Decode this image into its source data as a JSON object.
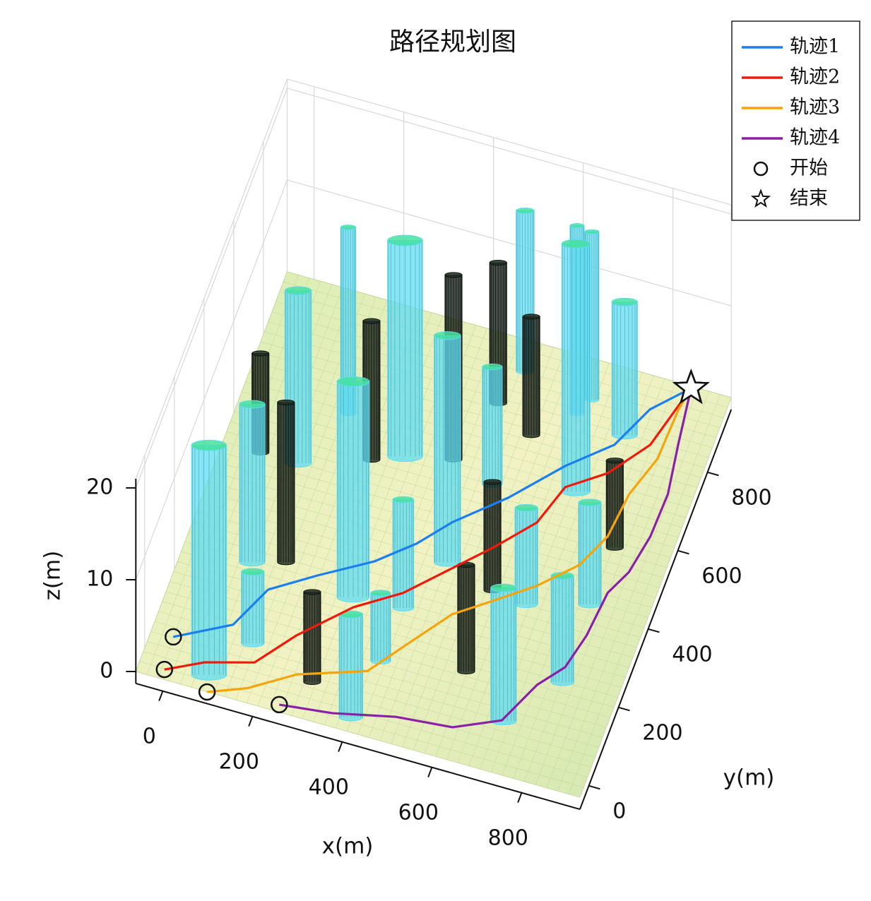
{
  "chart_data": {
    "type": "line3d",
    "title": "路径规划图",
    "xlabel": "x(m)",
    "ylabel": "y(m)",
    "zlabel": "z(m)",
    "xlim": [
      -60,
      930
    ],
    "ylim": [
      -60,
      960
    ],
    "zlim": [
      -1.3,
      21
    ],
    "xticks": [
      0,
      200,
      400,
      600,
      800
    ],
    "yticks": [
      0,
      200,
      400,
      600,
      800
    ],
    "zticks": [
      0,
      10,
      20
    ],
    "grid": true,
    "legend": "upper right",
    "series": [
      {
        "name": "轨迹1",
        "color": "#1a7ff0",
        "x": [
          3,
          114,
          158,
          247,
          350,
          422,
          477,
          572,
          662,
          745,
          789,
          856
        ],
        "y": [
          2,
          69,
          173,
          238,
          307,
          376,
          448,
          542,
          652,
          733,
          837,
          913
        ],
        "z": [
          2,
          2,
          2,
          2,
          2,
          2,
          2,
          2,
          2,
          2,
          2,
          2
        ]
      },
      {
        "name": "轨迹2",
        "color": "#f01a0a",
        "x": [
          10,
          86,
          186,
          250,
          343,
          432,
          512,
          581,
          648,
          678,
          753,
          817,
          856
        ],
        "y": [
          -79,
          -36,
          -4,
          86,
          188,
          253,
          342,
          419,
          503,
          603,
          663,
          756,
          913
        ],
        "z": [
          2,
          2,
          2,
          2,
          2,
          2,
          2,
          2,
          2,
          2,
          2,
          2,
          2
        ]
      },
      {
        "name": "轨迹3",
        "color": "#f5a40c",
        "x": [
          113,
          191,
          280,
          420,
          483,
          547,
          622,
          696,
          766,
          801,
          812,
          842,
          847,
          856
        ],
        "y": [
          -103,
          -68,
          -4,
          50,
          143,
          236,
          296,
          357,
          433,
          517,
          628,
          728,
          856,
          913
        ],
        "z": [
          2,
          2,
          2,
          2,
          2,
          2,
          2,
          2,
          2,
          2,
          2,
          2,
          2,
          2
        ]
      },
      {
        "name": "轨迹4",
        "color": "#8a1fa8",
        "x": [
          268,
          381,
          512,
          634,
          728,
          772,
          815,
          834,
          844,
          871,
          887,
          890,
          873,
          856
        ],
        "y": [
          -85,
          -70,
          -37,
          -24,
          24,
          129,
          188,
          275,
          387,
          449,
          545,
          654,
          775,
          913
        ],
        "z": [
          2,
          2,
          2,
          2,
          2,
          2,
          2,
          2,
          2,
          2,
          2,
          2,
          2,
          2
        ]
      }
    ],
    "start_marker": {
      "name": "开始"
    },
    "end_marker": {
      "name": "结束"
    },
    "obstacles": [
      {
        "color": "#5fdcf2",
        "top_color": "#45e0a0",
        "cylinders": [
          {
            "x": 90,
            "y": -20,
            "r": 37,
            "h": 25
          },
          {
            "x": 91,
            "y": 268,
            "r": 27,
            "h": 17.2
          },
          {
            "x": 108,
            "y": 526,
            "r": 28,
            "h": 18.8
          },
          {
            "x": 171,
            "y": 673,
            "r": 16,
            "h": 20.3
          },
          {
            "x": 321,
            "y": 253,
            "r": 34,
            "h": 23.5
          },
          {
            "x": 318,
            "y": 612,
            "r": 37,
            "h": 23.5
          },
          {
            "x": 484,
            "y": 395,
            "r": 28,
            "h": 24.7
          },
          {
            "x": 515,
            "y": 604,
            "r": 21,
            "h": 12.8
          },
          {
            "x": 495,
            "y": 886,
            "r": 19,
            "h": 17.5
          },
          {
            "x": 689,
            "y": 642,
            "r": 30,
            "h": 27
          },
          {
            "x": 632,
            "y": 822,
            "r": 15,
            "h": 20.5
          },
          {
            "x": 651,
            "y": 864,
            "r": 15,
            "h": 18.3
          },
          {
            "x": 744,
            "y": 804,
            "r": 27,
            "h": 14.5
          },
          {
            "x": 154,
            "y": 81,
            "r": 24,
            "h": 7.8
          },
          {
            "x": 425,
            "y": 124,
            "r": 21,
            "h": 7.4
          },
          {
            "x": 408,
            "y": -25,
            "r": 25,
            "h": 11.2
          },
          {
            "x": 430,
            "y": 261,
            "r": 22,
            "h": 11.8
          },
          {
            "x": 718,
            "y": 66,
            "r": 27,
            "h": 14.5
          },
          {
            "x": 675,
            "y": 350,
            "r": 24,
            "h": 10.5
          },
          {
            "x": 803,
            "y": 391,
            "r": 24,
            "h": 11.1
          },
          {
            "x": 807,
            "y": 194,
            "r": 24,
            "h": 11.6
          }
        ]
      },
      {
        "color": "#0c140e",
        "top_color": "#1e2a22",
        "cylinders": [
          {
            "x": 24,
            "y": 526,
            "r": 18,
            "h": 10.8
          },
          {
            "x": 159,
            "y": 290,
            "r": 18,
            "h": 17.4
          },
          {
            "x": 253,
            "y": 582,
            "r": 18,
            "h": 15.1
          },
          {
            "x": 418,
            "y": 636,
            "r": 18,
            "h": 20.1
          },
          {
            "x": 465,
            "y": 795,
            "r": 18,
            "h": 15.3
          },
          {
            "x": 556,
            "y": 743,
            "r": 18,
            "h": 12.9
          },
          {
            "x": 303,
            "y": 31,
            "r": 18,
            "h": 9.8
          },
          {
            "x": 605,
            "y": 156,
            "r": 18,
            "h": 11.6
          },
          {
            "x": 596,
            "y": 360,
            "r": 18,
            "h": 11.8
          },
          {
            "x": 810,
            "y": 538,
            "r": 18,
            "h": 9.5
          }
        ]
      }
    ]
  }
}
